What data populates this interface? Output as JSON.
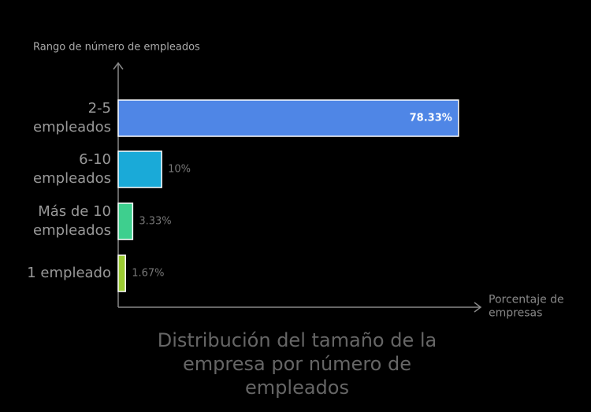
{
  "chart_data": {
    "type": "bar",
    "orientation": "horizontal",
    "title": "Distribución del tamaño de la empresa por número de empleados",
    "y_label": "Rango de número de empleados",
    "x_label": "Porcentaje de empresas",
    "categories": [
      "2-5 empleados",
      "6-10 empleados",
      "Más de 10 empleados",
      "1 empleado"
    ],
    "values": [
      78.33,
      10,
      3.33,
      1.67
    ],
    "value_labels": [
      "78.33%",
      "10%",
      "3.33%",
      "1.67%"
    ],
    "colors": [
      "#4f86e6",
      "#1aaad8",
      "#3ecf8e",
      "#9ccc33"
    ],
    "xlim": [
      0,
      80
    ]
  }
}
